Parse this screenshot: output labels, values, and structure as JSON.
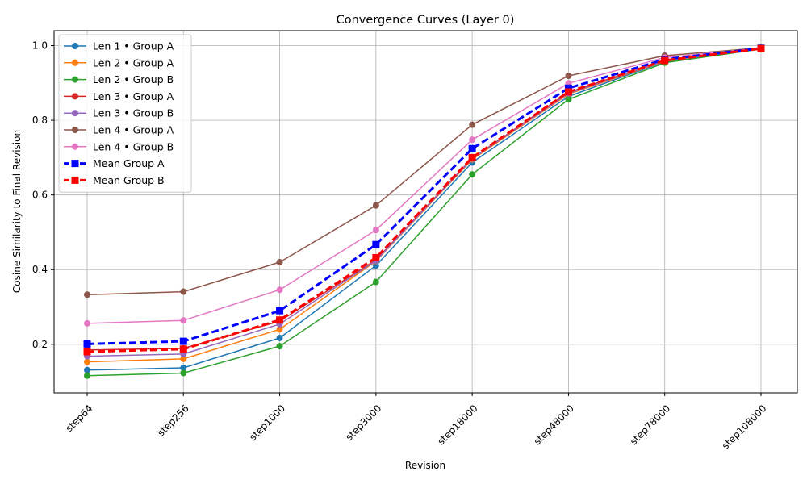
{
  "chart_data": {
    "type": "line",
    "title": "Convergence Curves (Layer 0)",
    "xlabel": "Revision",
    "ylabel": "Cosine Similarity to Final Revision",
    "categories": [
      "step64",
      "step256",
      "step1000",
      "step3000",
      "step18000",
      "step48000",
      "step78000",
      "step108000"
    ],
    "ylim": [
      0.07,
      1.04
    ],
    "yticks": [
      0.2,
      0.4,
      0.6,
      0.8,
      1.0
    ],
    "ytick_labels": [
      "0.2",
      "0.4",
      "0.6",
      "0.8",
      "1.0"
    ],
    "grid": true,
    "legend_position": "upper-left",
    "series": [
      {
        "name": "Len 1 • Group A",
        "color": "#1f77b4",
        "style": "solid",
        "marker": "circle",
        "values": [
          0.131,
          0.137,
          0.217,
          0.411,
          0.687,
          0.864,
          0.957,
          0.992
        ]
      },
      {
        "name": "Len 2 • Group A",
        "color": "#ff7f0e",
        "style": "solid",
        "marker": "circle",
        "values": [
          0.153,
          0.161,
          0.24,
          0.423,
          0.695,
          0.87,
          0.958,
          0.992
        ]
      },
      {
        "name": "Len 2 • Group B",
        "color": "#2ca02c",
        "style": "solid",
        "marker": "circle",
        "values": [
          0.116,
          0.123,
          0.195,
          0.367,
          0.655,
          0.856,
          0.954,
          0.991
        ]
      },
      {
        "name": "Len 3 • Group A",
        "color": "#d62728",
        "style": "solid",
        "marker": "circle",
        "values": [
          0.185,
          0.189,
          0.262,
          0.426,
          0.698,
          0.875,
          0.96,
          0.993
        ]
      },
      {
        "name": "Len 3 • Group B",
        "color": "#9467bd",
        "style": "solid",
        "marker": "circle",
        "values": [
          0.168,
          0.174,
          0.254,
          0.424,
          0.697,
          0.872,
          0.959,
          0.992
        ]
      },
      {
        "name": "Len 4 • Group A",
        "color": "#8c564b",
        "style": "solid",
        "marker": "circle",
        "values": [
          0.333,
          0.341,
          0.42,
          0.572,
          0.788,
          0.919,
          0.973,
          0.994
        ]
      },
      {
        "name": "Len 4 • Group B",
        "color": "#e377c2",
        "style": "solid",
        "marker": "circle",
        "values": [
          0.256,
          0.264,
          0.346,
          0.506,
          0.748,
          0.899,
          0.968,
          0.993
        ]
      },
      {
        "name": "Mean Group A",
        "color": "#0000ff",
        "style": "dashed",
        "marker": "square",
        "values": [
          0.201,
          0.208,
          0.29,
          0.467,
          0.724,
          0.886,
          0.963,
          0.993
        ]
      },
      {
        "name": "Mean Group B",
        "color": "#ff0000",
        "style": "dashed",
        "marker": "square",
        "values": [
          0.18,
          0.187,
          0.265,
          0.432,
          0.7,
          0.876,
          0.96,
          0.992
        ]
      }
    ]
  }
}
